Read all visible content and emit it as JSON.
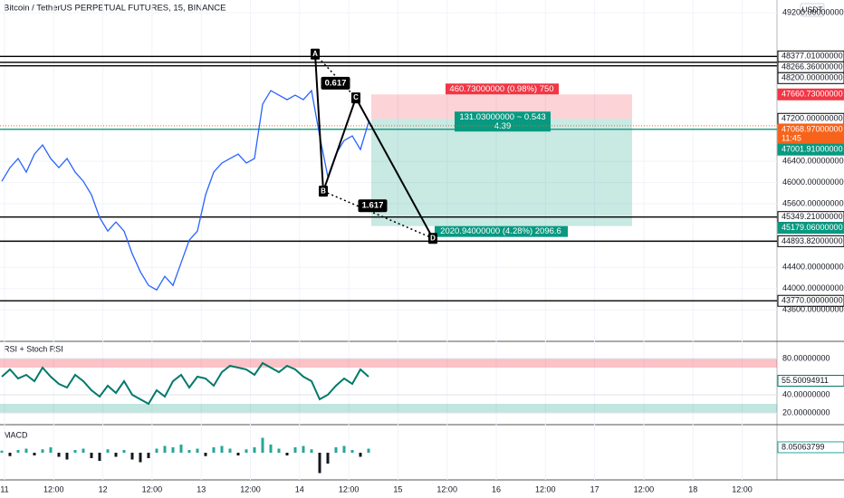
{
  "header": {
    "title": "Bitcoin / TetherUS PERPETUAL FUTURES, 15, BINANCE",
    "currency_button": "USDT"
  },
  "price_pane": {
    "ylim": [
      43040,
      49440
    ],
    "yticks": [
      {
        "value": 49200,
        "label": "49200.00000000"
      },
      {
        "value": 46400,
        "label": "46400.00000000"
      },
      {
        "value": 46000,
        "label": "46000.00000000"
      },
      {
        "value": 45600,
        "label": "45600.00000000"
      },
      {
        "value": 44400,
        "label": "44400.00000000"
      },
      {
        "value": 44000,
        "label": "44000.00000000"
      },
      {
        "value": 43600,
        "label": "43600.00000000"
      }
    ],
    "close": [
      46024,
      46280,
      46451,
      46195,
      46536,
      46707,
      46451,
      46280,
      46451,
      46195,
      46024,
      45768,
      45341,
      45085,
      45256,
      45085,
      44658,
      44317,
      44060,
      43975,
      44231,
      44060,
      44487,
      44914,
      45085,
      45768,
      46195,
      46366,
      46451,
      46536,
      46366,
      46451,
      47475,
      47732,
      47646,
      47561,
      47646,
      47561,
      47732,
      46878,
      46109,
      46536,
      46792,
      46878,
      46622,
      47134
    ],
    "color": "#2962ff",
    "price_lines": [
      {
        "value": 48377.01,
        "label": "48377.01000000",
        "color": "#000000",
        "line": "solid"
      },
      {
        "value": 48266.36,
        "label": "48266.36000000",
        "color": "#000000",
        "line": "solid"
      },
      {
        "value": 48200,
        "label": "48200.00000000",
        "color": "#000000",
        "line": "solid"
      },
      {
        "value": 47660.73,
        "label": "47660.73000000",
        "color": "#f23645",
        "line": "none"
      },
      {
        "value": 47200,
        "label": "47200.00000000",
        "color": "#000000",
        "line": "none"
      },
      {
        "value": 47068.97,
        "label": "47068.97000000",
        "sublabel": "11:45",
        "color": "#f7631b",
        "line": "dotted"
      },
      {
        "value": 47001.91,
        "label": "47001.91000000",
        "color": "#089981",
        "line": "solid"
      },
      {
        "value": 45349.21,
        "label": "45349.21000000",
        "color": "#000000",
        "line": "solid"
      },
      {
        "value": 45179.06,
        "label": "45179.06000000",
        "color": "#089981",
        "line": "none"
      },
      {
        "value": 44893.82,
        "label": "44893.82000000",
        "color": "#000000",
        "line": "solid"
      },
      {
        "value": 43770,
        "label": "43770.00000000",
        "color": "#000000",
        "line": "solid"
      }
    ],
    "pattern": {
      "points": [
        {
          "name": "A",
          "price": 48420
        },
        {
          "name": "B",
          "price": 45836
        },
        {
          "name": "C",
          "price": 47595
        },
        {
          "name": "D",
          "price": 44948
        }
      ],
      "ratios": [
        "0.617",
        "1.617"
      ]
    },
    "position": {
      "stop": 47660.73,
      "entry": 47200,
      "target": 45179.06,
      "stop_label": "460.73000000 (0.98%) 750",
      "entry_label": "131.03000000 ~ 0.543",
      "entry_sublabel": "4.39",
      "target_label": "2020.94000000 (4.28%) 2096.6"
    }
  },
  "rsi_pane": {
    "title": "RSI + Stoch RSI",
    "ylim": [
      8,
      98
    ],
    "yticks": [
      {
        "value": 80,
        "label": "80.00000000"
      },
      {
        "value": 40,
        "label": "40.00000000"
      },
      {
        "value": 20,
        "label": "20.00000000"
      }
    ],
    "bands": [
      [
        70,
        80
      ],
      [
        20,
        30
      ]
    ],
    "values": [
      60,
      68,
      58,
      62,
      55,
      70,
      60,
      52,
      48,
      62,
      55,
      45,
      38,
      50,
      42,
      55,
      40,
      35,
      30,
      45,
      38,
      55,
      62,
      48,
      60,
      58,
      50,
      65,
      72,
      70,
      68,
      62,
      75,
      70,
      65,
      72,
      68,
      60,
      55,
      35,
      40,
      50,
      58,
      52,
      68,
      60
    ],
    "color": "#00796b",
    "current": {
      "value": 55.50094911,
      "label": "55.50094911"
    }
  },
  "macd_pane": {
    "title": "MACD",
    "ylim": [
      -40,
      40
    ],
    "histogram": [
      3,
      -5,
      4,
      6,
      -4,
      5,
      8,
      -6,
      -10,
      4,
      6,
      -8,
      -12,
      5,
      -6,
      4,
      -10,
      -14,
      -8,
      6,
      10,
      8,
      12,
      4,
      6,
      -5,
      8,
      10,
      6,
      -4,
      5,
      8,
      22,
      12,
      6,
      -4,
      8,
      10,
      5,
      -30,
      -16,
      8,
      10,
      4,
      -6,
      6
    ],
    "current": {
      "value": 8.05063799,
      "label": "8.05063799"
    }
  },
  "time_axis": {
    "labels": [
      "11",
      "12:00",
      "12",
      "12:00",
      "13",
      "12:00",
      "14",
      "12:00",
      "15",
      "12:00",
      "16",
      "12:00",
      "17",
      "12:00",
      "18",
      "12:00"
    ]
  }
}
